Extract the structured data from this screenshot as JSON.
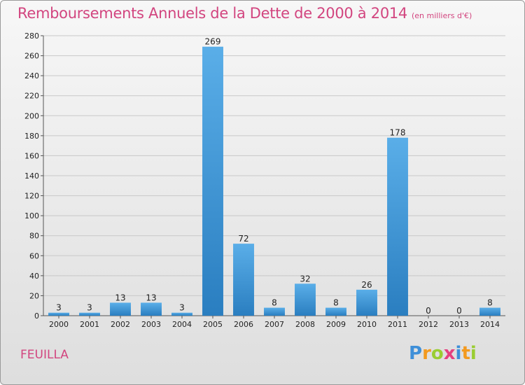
{
  "title": "Remboursements Annuels de la Dette de 2000 à 2014",
  "unit": "(en milliers d'€)",
  "commune": "FEUILLA",
  "logo": {
    "p": "P",
    "r": "r",
    "o": "o",
    "x": "x",
    "i": "i",
    "t": "t",
    "i2": "i"
  },
  "colors": {
    "title": "#d2457f",
    "bar_top": "#5aaee8",
    "bar_bottom": "#2a7ec0",
    "grid": "#cccccc"
  },
  "chart_data": {
    "type": "bar",
    "categories": [
      "2000",
      "2001",
      "2002",
      "2003",
      "2004",
      "2005",
      "2006",
      "2007",
      "2008",
      "2009",
      "2010",
      "2011",
      "2012",
      "2013",
      "2014"
    ],
    "values": [
      3,
      3,
      13,
      13,
      3,
      269,
      72,
      8,
      32,
      8,
      26,
      178,
      0,
      0,
      8
    ],
    "ylim": [
      0,
      280
    ],
    "yticks": [
      0,
      20,
      40,
      60,
      80,
      100,
      120,
      140,
      160,
      180,
      200,
      220,
      240,
      260,
      280
    ],
    "grid": true
  }
}
